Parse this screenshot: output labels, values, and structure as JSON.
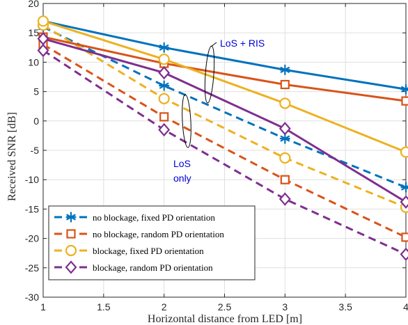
{
  "chart_data": {
    "type": "line",
    "xlabel": "Horizontal distance from LED [m]",
    "ylabel": "Received SNR [dB]",
    "xlim": [
      1,
      4
    ],
    "ylim": [
      -30,
      20
    ],
    "xticks": [
      1,
      1.5,
      2,
      2.5,
      3,
      3.5,
      4
    ],
    "yticks": [
      -30,
      -25,
      -20,
      -15,
      -10,
      -5,
      0,
      5,
      10,
      15,
      20
    ],
    "xtick_labels": [
      "1",
      "1.5",
      "2",
      "2.5",
      "3",
      "3.5",
      "4"
    ],
    "ytick_labels": [
      "-30",
      "-25",
      "-20",
      "-15",
      "-10",
      "-5",
      "0",
      "5",
      "10",
      "15",
      "20"
    ],
    "grid": true,
    "legend_position": "bottom-left",
    "legend": [
      "no blockage, fixed PD orientation",
      "no blockage, random PD orientation",
      "blockage, fixed PD orientation",
      "blockage, random PD orientation"
    ],
    "annotations": [
      {
        "text": "LoS + RIS"
      },
      {
        "text_lines": [
          "LoS",
          "only"
        ]
      }
    ],
    "x": [
      1,
      2,
      3,
      4
    ],
    "series": [
      {
        "group": "LoS + RIS",
        "style": "solid",
        "marker": "asterisk",
        "color": "#0072bd",
        "values": [
          17,
          12.5,
          8.7,
          5.4
        ]
      },
      {
        "group": "LoS + RIS",
        "style": "solid",
        "marker": "square",
        "color": "#d95319",
        "values": [
          14.3,
          9.8,
          6.2,
          3.4
        ]
      },
      {
        "group": "LoS + RIS",
        "style": "solid",
        "marker": "circle",
        "color": "#edb120",
        "values": [
          17,
          10.5,
          3,
          -5.3
        ]
      },
      {
        "group": "LoS + RIS",
        "style": "solid",
        "marker": "diamond",
        "color": "#7e2f8e",
        "values": [
          14,
          8.2,
          -1.3,
          -13.8
        ]
      },
      {
        "group": "LoS only",
        "style": "dashed",
        "marker": "asterisk",
        "color": "#0072bd",
        "values": [
          16,
          6,
          -3,
          -11.3
        ]
      },
      {
        "group": "LoS only",
        "style": "dashed",
        "marker": "square",
        "color": "#d95319",
        "values": [
          13,
          0.7,
          -10,
          -19.8
        ]
      },
      {
        "group": "LoS only",
        "style": "dashed",
        "marker": "circle",
        "color": "#edb120",
        "values": [
          16.3,
          3.8,
          -6.3,
          -14.7
        ]
      },
      {
        "group": "LoS only",
        "style": "dashed",
        "marker": "diamond",
        "color": "#7e2f8e",
        "values": [
          12,
          -1.5,
          -13.3,
          -22.7
        ]
      }
    ]
  }
}
